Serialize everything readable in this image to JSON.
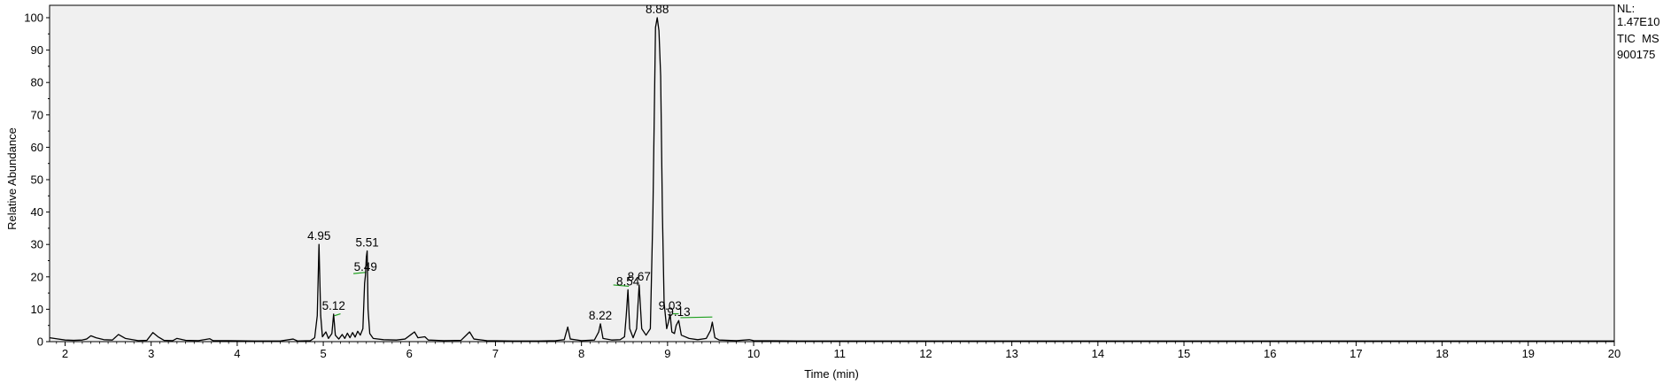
{
  "chart_data": {
    "type": "line",
    "title": "",
    "xlabel": "Time (min)",
    "ylabel": "Relative Abundance",
    "xlim": [
      1.82,
      20.0
    ],
    "ylim": [
      0,
      100
    ],
    "xticks": [
      2,
      3,
      4,
      5,
      6,
      7,
      8,
      9,
      10,
      11,
      12,
      13,
      14,
      15,
      16,
      17,
      18,
      19,
      20
    ],
    "yticks": [
      0,
      10,
      20,
      30,
      40,
      50,
      60,
      70,
      80,
      90,
      100
    ],
    "info": {
      "nl_label": "NL:",
      "nl_value": "1.47E10",
      "trace": "TIC  MS",
      "sample": "900175"
    },
    "colors": {
      "plot_bg": "#f0f0f0",
      "trace": "#000000",
      "baseline_marker": "#1ea01e"
    },
    "series": [
      {
        "values": [
          [
            1.82,
            1.2
          ],
          [
            1.9,
            0.9
          ],
          [
            2.0,
            0.5
          ],
          [
            2.1,
            0.4
          ],
          [
            2.2,
            0.5
          ],
          [
            2.25,
            0.8
          ],
          [
            2.3,
            1.8
          ],
          [
            2.36,
            1.2
          ],
          [
            2.45,
            0.6
          ],
          [
            2.55,
            0.5
          ],
          [
            2.62,
            2.2
          ],
          [
            2.7,
            1.0
          ],
          [
            2.85,
            0.3
          ],
          [
            2.95,
            0.4
          ],
          [
            3.02,
            2.8
          ],
          [
            3.08,
            1.5
          ],
          [
            3.15,
            0.4
          ],
          [
            3.25,
            0.3
          ],
          [
            3.3,
            1.0
          ],
          [
            3.4,
            0.4
          ],
          [
            3.55,
            0.3
          ],
          [
            3.68,
            0.9
          ],
          [
            3.72,
            0.3
          ],
          [
            3.9,
            0.3
          ],
          [
            4.2,
            0.2
          ],
          [
            4.5,
            0.2
          ],
          [
            4.65,
            0.8
          ],
          [
            4.7,
            0.2
          ],
          [
            4.85,
            0.3
          ],
          [
            4.9,
            1.2
          ],
          [
            4.93,
            8.0
          ],
          [
            4.95,
            30.0
          ],
          [
            4.97,
            8.0
          ],
          [
            4.99,
            1.5
          ],
          [
            5.03,
            3.0
          ],
          [
            5.06,
            1.0
          ],
          [
            5.1,
            2.5
          ],
          [
            5.12,
            8.5
          ],
          [
            5.14,
            2.0
          ],
          [
            5.18,
            0.8
          ],
          [
            5.22,
            2.2
          ],
          [
            5.25,
            1.0
          ],
          [
            5.28,
            2.6
          ],
          [
            5.31,
            1.2
          ],
          [
            5.34,
            2.8
          ],
          [
            5.37,
            1.4
          ],
          [
            5.4,
            3.2
          ],
          [
            5.43,
            2.0
          ],
          [
            5.46,
            4.0
          ],
          [
            5.48,
            18.0
          ],
          [
            5.49,
            20.5
          ],
          [
            5.5,
            26.0
          ],
          [
            5.51,
            28.0
          ],
          [
            5.52,
            10.0
          ],
          [
            5.54,
            2.5
          ],
          [
            5.58,
            1.0
          ],
          [
            5.7,
            0.6
          ],
          [
            5.85,
            0.5
          ],
          [
            5.95,
            0.8
          ],
          [
            6.02,
            2.2
          ],
          [
            6.06,
            3.0
          ],
          [
            6.1,
            1.2
          ],
          [
            6.18,
            1.5
          ],
          [
            6.22,
            0.5
          ],
          [
            6.4,
            0.3
          ],
          [
            6.6,
            0.4
          ],
          [
            6.7,
            3.0
          ],
          [
            6.75,
            0.8
          ],
          [
            6.9,
            0.3
          ],
          [
            7.2,
            0.2
          ],
          [
            7.5,
            0.2
          ],
          [
            7.7,
            0.3
          ],
          [
            7.8,
            0.6
          ],
          [
            7.84,
            4.5
          ],
          [
            7.87,
            0.8
          ],
          [
            8.0,
            0.3
          ],
          [
            8.15,
            0.5
          ],
          [
            8.2,
            3.0
          ],
          [
            8.22,
            5.5
          ],
          [
            8.25,
            1.0
          ],
          [
            8.35,
            0.5
          ],
          [
            8.45,
            0.6
          ],
          [
            8.5,
            1.5
          ],
          [
            8.52,
            8.0
          ],
          [
            8.54,
            16.0
          ],
          [
            8.56,
            4.0
          ],
          [
            8.6,
            1.2
          ],
          [
            8.64,
            4.0
          ],
          [
            8.67,
            17.5
          ],
          [
            8.7,
            4.0
          ],
          [
            8.75,
            2.0
          ],
          [
            8.8,
            4.0
          ],
          [
            8.83,
            40.0
          ],
          [
            8.86,
            97.0
          ],
          [
            8.88,
            100.0
          ],
          [
            8.9,
            96.0
          ],
          [
            8.92,
            82.0
          ],
          [
            8.94,
            40.0
          ],
          [
            8.96,
            12.0
          ],
          [
            8.99,
            4.0
          ],
          [
            9.01,
            6.0
          ],
          [
            9.03,
            8.5
          ],
          [
            9.05,
            3.0
          ],
          [
            9.08,
            2.5
          ],
          [
            9.1,
            5.0
          ],
          [
            9.13,
            6.5
          ],
          [
            9.16,
            2.0
          ],
          [
            9.25,
            1.0
          ],
          [
            9.35,
            0.6
          ],
          [
            9.45,
            1.0
          ],
          [
            9.5,
            3.5
          ],
          [
            9.52,
            6.0
          ],
          [
            9.55,
            1.2
          ],
          [
            9.6,
            0.5
          ],
          [
            9.7,
            0.4
          ],
          [
            9.8,
            0.3
          ],
          [
            9.95,
            0.6
          ],
          [
            10.0,
            0.3
          ],
          [
            10.5,
            0.2
          ],
          [
            11.0,
            0.2
          ],
          [
            12.0,
            0.2
          ],
          [
            13.0,
            0.2
          ],
          [
            14.0,
            0.2
          ],
          [
            15.0,
            0.2
          ],
          [
            16.0,
            0.2
          ],
          [
            17.0,
            0.2
          ],
          [
            18.0,
            0.2
          ],
          [
            19.0,
            0.2
          ],
          [
            20.0,
            0.2
          ]
        ]
      }
    ],
    "peak_labels": [
      {
        "text": "4.95",
        "x": 4.95,
        "y": 30.0
      },
      {
        "text": "5.12",
        "x": 5.12,
        "y": 8.5
      },
      {
        "text": "5.49",
        "x": 5.49,
        "y": 20.5
      },
      {
        "text": "5.51",
        "x": 5.51,
        "y": 28.0
      },
      {
        "text": "8.22",
        "x": 8.22,
        "y": 5.5
      },
      {
        "text": "8.54",
        "x": 8.54,
        "y": 16.0
      },
      {
        "text": "8.67",
        "x": 8.67,
        "y": 17.5
      },
      {
        "text": "8.88",
        "x": 8.88,
        "y": 100.0
      },
      {
        "text": "9.03",
        "x": 9.03,
        "y": 8.5
      },
      {
        "text": "9.13",
        "x": 9.13,
        "y": 6.5
      }
    ],
    "integration_markers": [
      {
        "x1": 5.13,
        "y1": 8.0,
        "x2": 5.2,
        "y2": 8.6
      },
      {
        "x1": 5.35,
        "y1": 21.0,
        "x2": 5.5,
        "y2": 21.4
      },
      {
        "x1": 8.37,
        "y1": 17.5,
        "x2": 8.55,
        "y2": 17.1
      },
      {
        "x1": 9.06,
        "y1": 8.6,
        "x2": 9.13,
        "y2": 8.6
      },
      {
        "x1": 9.15,
        "y1": 7.4,
        "x2": 9.52,
        "y2": 7.6
      }
    ]
  }
}
